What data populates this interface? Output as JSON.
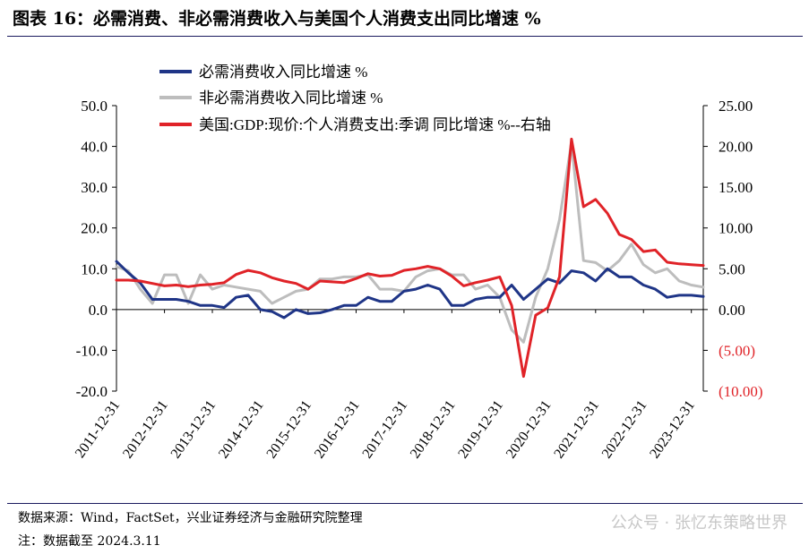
{
  "header": {
    "title": "图表 16：必需消费、非必需消费收入与美国个人消费支出同比增速 %"
  },
  "footer": {
    "source": "数据来源：Wind，FactSet，兴业证券经济与金融研究院整理",
    "note": "注：数据截至 2024.3.11",
    "watermark": "公众号 · 张忆东策略世界"
  },
  "colors": {
    "navy": "#1f3587",
    "gray": "#bdbdbd",
    "red": "#e02328",
    "axis": "#000000"
  },
  "chart_data": {
    "type": "line",
    "left_axis": {
      "range": [
        -20,
        50
      ],
      "ticks": [
        -20,
        -10,
        0,
        10,
        20,
        30,
        40,
        50
      ],
      "tick_labels": [
        "-20.0",
        "-10.0",
        "0.0",
        "10.0",
        "20.0",
        "30.0",
        "40.0",
        "50.0"
      ]
    },
    "right_axis": {
      "range": [
        -10,
        25
      ],
      "ticks": [
        -10,
        -5,
        0,
        5,
        10,
        15,
        20,
        25
      ],
      "tick_labels": [
        "(10.00)",
        "(5.00)",
        "0.00",
        "5.00",
        "10.00",
        "15.00",
        "20.00",
        "25.00"
      ]
    },
    "x_range": [
      "2011-12-31",
      "2024-03-31"
    ],
    "x_tick_labels": [
      "2011-12-31",
      "2012-12-31",
      "2013-12-31",
      "2014-12-31",
      "2015-12-31",
      "2016-12-31",
      "2017-12-31",
      "2018-12-31",
      "2019-12-31",
      "2020-12-31",
      "2021-12-31",
      "2022-12-31",
      "2023-12-31"
    ],
    "series": [
      {
        "name": "必需消费收入同比增速 %",
        "axis": "left",
        "color": "#1f3587",
        "points": [
          [
            "2011-12-31",
            11.8
          ],
          [
            "2012-03-31",
            9.0
          ],
          [
            "2012-06-30",
            6.5
          ],
          [
            "2012-09-30",
            2.5
          ],
          [
            "2012-12-31",
            2.5
          ],
          [
            "2013-03-31",
            2.5
          ],
          [
            "2013-06-30",
            2.0
          ],
          [
            "2013-09-30",
            1.0
          ],
          [
            "2013-12-31",
            1.0
          ],
          [
            "2014-03-31",
            0.5
          ],
          [
            "2014-06-30",
            3.0
          ],
          [
            "2014-09-30",
            3.5
          ],
          [
            "2014-12-31",
            0.0
          ],
          [
            "2015-03-31",
            -0.5
          ],
          [
            "2015-06-30",
            -2.0
          ],
          [
            "2015-09-30",
            0.0
          ],
          [
            "2015-12-31",
            -1.0
          ],
          [
            "2016-03-31",
            -0.8
          ],
          [
            "2016-06-30",
            0.0
          ],
          [
            "2016-09-30",
            1.0
          ],
          [
            "2016-12-31",
            1.0
          ],
          [
            "2017-03-31",
            3.0
          ],
          [
            "2017-06-30",
            2.0
          ],
          [
            "2017-09-30",
            2.0
          ],
          [
            "2017-12-31",
            4.5
          ],
          [
            "2018-03-31",
            5.0
          ],
          [
            "2018-06-30",
            6.0
          ],
          [
            "2018-09-30",
            5.0
          ],
          [
            "2018-12-31",
            1.0
          ],
          [
            "2019-03-31",
            1.0
          ],
          [
            "2019-06-30",
            2.5
          ],
          [
            "2019-09-30",
            3.0
          ],
          [
            "2019-12-31",
            3.0
          ],
          [
            "2020-03-31",
            6.0
          ],
          [
            "2020-06-30",
            2.5
          ],
          [
            "2020-09-30",
            5.0
          ],
          [
            "2020-12-31",
            7.5
          ],
          [
            "2021-03-31",
            6.5
          ],
          [
            "2021-06-30",
            9.5
          ],
          [
            "2021-09-30",
            9.0
          ],
          [
            "2021-12-31",
            7.0
          ],
          [
            "2022-03-31",
            10.0
          ],
          [
            "2022-06-30",
            8.0
          ],
          [
            "2022-09-30",
            8.0
          ],
          [
            "2022-12-31",
            6.0
          ],
          [
            "2023-03-31",
            5.0
          ],
          [
            "2023-06-30",
            3.0
          ],
          [
            "2023-09-30",
            3.5
          ],
          [
            "2023-12-31",
            3.5
          ],
          [
            "2024-03-31",
            3.2
          ]
        ]
      },
      {
        "name": "非必需消费收入同比增速 %",
        "axis": "left",
        "color": "#bdbdbd",
        "points": [
          [
            "2011-12-31",
            10.5
          ],
          [
            "2012-03-31",
            9.5
          ],
          [
            "2012-06-30",
            5.0
          ],
          [
            "2012-09-30",
            1.5
          ],
          [
            "2012-12-31",
            8.5
          ],
          [
            "2013-03-31",
            8.5
          ],
          [
            "2013-06-30",
            1.5
          ],
          [
            "2013-09-30",
            8.5
          ],
          [
            "2013-12-31",
            5.0
          ],
          [
            "2014-03-31",
            6.0
          ],
          [
            "2014-06-30",
            5.5
          ],
          [
            "2014-09-30",
            5.0
          ],
          [
            "2014-12-31",
            4.5
          ],
          [
            "2015-03-31",
            1.5
          ],
          [
            "2015-06-30",
            3.0
          ],
          [
            "2015-09-30",
            4.5
          ],
          [
            "2015-12-31",
            5.0
          ],
          [
            "2016-03-31",
            7.5
          ],
          [
            "2016-06-30",
            7.5
          ],
          [
            "2016-09-30",
            8.0
          ],
          [
            "2016-12-31",
            8.0
          ],
          [
            "2017-03-31",
            8.5
          ],
          [
            "2017-06-30",
            5.0
          ],
          [
            "2017-09-30",
            5.0
          ],
          [
            "2017-12-31",
            4.5
          ],
          [
            "2018-03-31",
            8.0
          ],
          [
            "2018-06-30",
            9.5
          ],
          [
            "2018-09-30",
            10.0
          ],
          [
            "2018-12-31",
            8.5
          ],
          [
            "2019-03-31",
            8.5
          ],
          [
            "2019-06-30",
            5.0
          ],
          [
            "2019-09-30",
            6.0
          ],
          [
            "2019-12-31",
            3.0
          ],
          [
            "2020-03-31",
            -5.0
          ],
          [
            "2020-06-30",
            -8.0
          ],
          [
            "2020-09-30",
            3.0
          ],
          [
            "2020-12-31",
            10.0
          ],
          [
            "2021-03-31",
            22.0
          ],
          [
            "2021-06-30",
            41.0
          ],
          [
            "2021-09-30",
            12.0
          ],
          [
            "2021-12-31",
            11.5
          ],
          [
            "2022-03-31",
            9.5
          ],
          [
            "2022-06-30",
            12.0
          ],
          [
            "2022-09-30",
            16.0
          ],
          [
            "2022-12-31",
            11.0
          ],
          [
            "2023-03-31",
            9.0
          ],
          [
            "2023-06-30",
            10.0
          ],
          [
            "2023-09-30",
            7.0
          ],
          [
            "2023-12-31",
            6.0
          ],
          [
            "2024-03-31",
            5.5
          ]
        ]
      },
      {
        "name": "美国:GDP:现价:个人消费支出:季调 同比增速 %--右轴",
        "axis": "right",
        "color": "#e02328",
        "points": [
          [
            "2011-12-31",
            3.6
          ],
          [
            "2012-03-31",
            3.6
          ],
          [
            "2012-06-30",
            3.5
          ],
          [
            "2012-09-30",
            3.2
          ],
          [
            "2012-12-31",
            2.9
          ],
          [
            "2013-03-31",
            3.0
          ],
          [
            "2013-06-30",
            2.8
          ],
          [
            "2013-09-30",
            3.0
          ],
          [
            "2013-12-31",
            3.1
          ],
          [
            "2014-03-31",
            3.3
          ],
          [
            "2014-06-30",
            4.3
          ],
          [
            "2014-09-30",
            4.8
          ],
          [
            "2014-12-31",
            4.5
          ],
          [
            "2015-03-31",
            3.9
          ],
          [
            "2015-06-30",
            3.5
          ],
          [
            "2015-09-30",
            3.2
          ],
          [
            "2015-12-31",
            2.5
          ],
          [
            "2016-03-31",
            3.5
          ],
          [
            "2016-06-30",
            3.4
          ],
          [
            "2016-09-30",
            3.3
          ],
          [
            "2016-12-31",
            3.8
          ],
          [
            "2017-03-31",
            4.4
          ],
          [
            "2017-06-30",
            4.1
          ],
          [
            "2017-09-30",
            4.2
          ],
          [
            "2017-12-31",
            4.8
          ],
          [
            "2018-03-31",
            5.0
          ],
          [
            "2018-06-30",
            5.3
          ],
          [
            "2018-09-30",
            5.0
          ],
          [
            "2018-12-31",
            4.1
          ],
          [
            "2019-03-31",
            2.9
          ],
          [
            "2019-06-30",
            3.3
          ],
          [
            "2019-09-30",
            3.6
          ],
          [
            "2019-12-31",
            4.0
          ],
          [
            "2020-03-31",
            0.5
          ],
          [
            "2020-06-30",
            -8.2
          ],
          [
            "2020-09-30",
            -0.7
          ],
          [
            "2020-12-31",
            0.2
          ],
          [
            "2021-03-31",
            4.0
          ],
          [
            "2021-06-30",
            20.9
          ],
          [
            "2021-09-30",
            12.6
          ],
          [
            "2021-12-31",
            13.5
          ],
          [
            "2022-03-31",
            11.8
          ],
          [
            "2022-06-30",
            9.2
          ],
          [
            "2022-09-30",
            8.6
          ],
          [
            "2022-12-31",
            7.1
          ],
          [
            "2023-03-31",
            7.3
          ],
          [
            "2023-06-30",
            5.8
          ],
          [
            "2023-09-30",
            5.6
          ],
          [
            "2023-12-31",
            5.5
          ],
          [
            "2024-03-31",
            5.4
          ]
        ]
      }
    ]
  }
}
